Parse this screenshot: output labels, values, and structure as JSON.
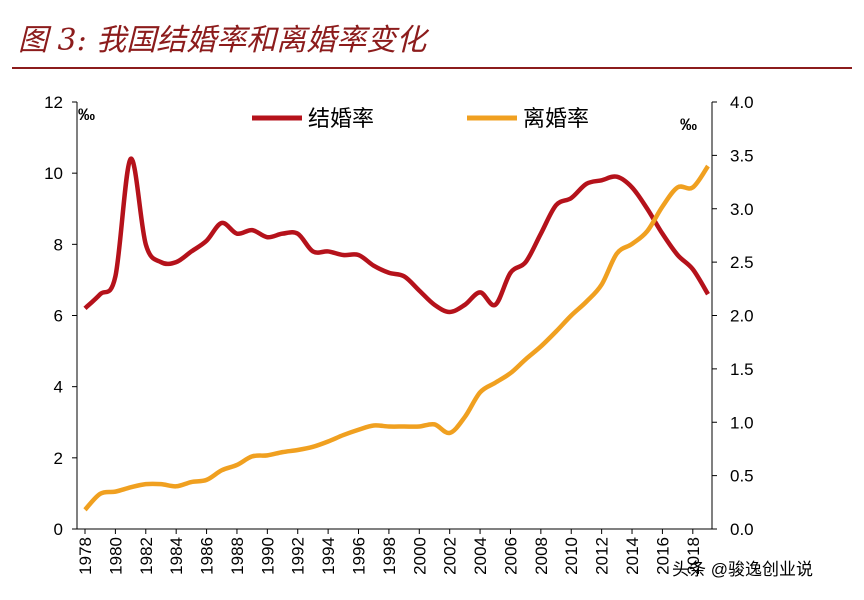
{
  "chart_data": {
    "type": "line",
    "title": "图 3: 我国结婚率和离婚率变化",
    "y_unit": "‰",
    "y2_unit": "‰",
    "watermark": "头条 @骏逸创业说",
    "x": [
      1978,
      1979,
      1980,
      1981,
      1982,
      1983,
      1984,
      1985,
      1986,
      1987,
      1988,
      1989,
      1990,
      1991,
      1992,
      1993,
      1994,
      1995,
      1996,
      1997,
      1998,
      1999,
      2000,
      2001,
      2002,
      2003,
      2004,
      2005,
      2006,
      2007,
      2008,
      2009,
      2010,
      2011,
      2012,
      2013,
      2014,
      2015,
      2016,
      2017,
      2018,
      2019
    ],
    "xlim": [
      1978,
      2019
    ],
    "xticks": [
      1978,
      1980,
      1982,
      1984,
      1986,
      1988,
      1990,
      1992,
      1994,
      1996,
      1998,
      2000,
      2002,
      2004,
      2006,
      2008,
      2010,
      2012,
      2014,
      2016,
      2018
    ],
    "ylim": [
      0,
      12
    ],
    "yticks": [
      0,
      2,
      4,
      6,
      8,
      10,
      12
    ],
    "y2lim": [
      0,
      4
    ],
    "y2ticks": [
      {
        "value": 0,
        "label": "0.0"
      },
      {
        "value": 0.5,
        "label": "0.5"
      },
      {
        "value": 1,
        "label": "1.0"
      },
      {
        "value": 1.5,
        "label": "1.5"
      },
      {
        "value": 2,
        "label": "2.0"
      },
      {
        "value": 2.5,
        "label": "2.5"
      },
      {
        "value": 3,
        "label": "3.0"
      },
      {
        "value": 3.5,
        "label": "3.5"
      },
      {
        "value": 4,
        "label": "4.0"
      }
    ],
    "series": [
      {
        "name": "结婚率",
        "color": "#b5121b",
        "values": [
          6.2,
          6.6,
          7.1,
          10.4,
          8.0,
          7.5,
          7.5,
          7.8,
          8.1,
          8.6,
          8.3,
          8.4,
          8.2,
          8.3,
          8.3,
          7.8,
          7.8,
          7.7,
          7.7,
          7.4,
          7.2,
          7.1,
          6.7,
          6.3,
          6.1,
          6.3,
          6.65,
          6.3,
          7.2,
          7.5,
          8.3,
          9.1,
          9.3,
          9.7,
          9.8,
          9.9,
          9.6,
          9.0,
          8.3,
          7.7,
          7.3,
          6.6
        ]
      },
      {
        "name": "离婚率",
        "color": "#f0a020",
        "axis": "y2",
        "values": [
          0.18,
          0.33,
          0.35,
          0.39,
          0.42,
          0.42,
          0.4,
          0.44,
          0.46,
          0.55,
          0.6,
          0.68,
          0.69,
          0.72,
          0.74,
          0.77,
          0.82,
          0.88,
          0.93,
          0.97,
          0.96,
          0.96,
          0.96,
          0.98,
          0.9,
          1.05,
          1.28,
          1.37,
          1.46,
          1.59,
          1.71,
          1.85,
          2.0,
          2.13,
          2.29,
          2.58,
          2.67,
          2.79,
          3.02,
          3.2,
          3.2,
          3.4
        ]
      }
    ]
  }
}
